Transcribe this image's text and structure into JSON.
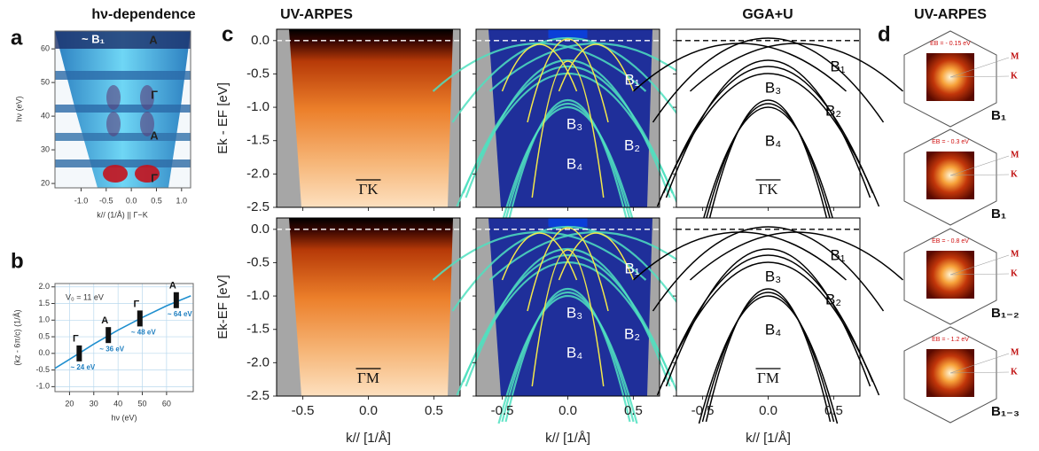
{
  "panels": {
    "a": {
      "letter": "a",
      "title": "hν-dependence",
      "ylabel": "hν (eV)",
      "xlabel": "k// (1/Å) || Γ−K",
      "xlim": [
        -1.52,
        1.18
      ],
      "ylim": [
        18.7,
        65.3
      ],
      "xticks": [
        {
          "value": -1,
          "label": "-1.0"
        },
        -0.5,
        {
          "value": 0,
          "label": "0.0"
        },
        0.5,
        {
          "value": 1,
          "label": "1.0"
        }
      ],
      "yticks": [
        20,
        30,
        40,
        50,
        60
      ],
      "annotations": [
        "~ B₁",
        "A",
        "Γ",
        "A",
        "Γ"
      ]
    },
    "b": {
      "letter": "b",
      "ylabel": "(kz - 6π/c) (1/Å)",
      "xlabel": "hν (eV)",
      "v0_label": "V₀ = 11 eV",
      "xlim": [
        14,
        71
      ],
      "ylim": [
        -1.15,
        2.1
      ],
      "grid": true,
      "xticks": [
        20,
        30,
        40,
        50,
        60
      ],
      "yticks": [
        {
          "value": -1,
          "label": "-1.0"
        },
        -0.5,
        {
          "value": 0,
          "label": "0.0"
        },
        0.5,
        {
          "value": 1,
          "label": "1.0"
        },
        1.5,
        {
          "value": 2,
          "label": "2.0"
        }
      ],
      "curve": {
        "x": [
          14,
          20,
          30,
          40,
          50,
          60,
          70
        ],
        "y": [
          -0.45,
          -0.18,
          0.28,
          0.7,
          1.08,
          1.43,
          1.73
        ]
      },
      "points": {
        "x": [
          24,
          36,
          49,
          64
        ],
        "y": [
          0,
          0.55,
          1.05,
          1.6
        ],
        "labels": [
          "Γ",
          "A",
          "Γ",
          "A"
        ],
        "energies": [
          "~ 24 eV",
          "~ 36 eV",
          "~ 48 eV",
          "~ 64 eV"
        ]
      }
    },
    "c": {
      "letter": "c",
      "titles": [
        "UV-ARPES",
        "GGA+U"
      ],
      "xlabel": "k// [1/Å]",
      "xlim": [
        -0.7,
        0.7
      ],
      "ylim": [
        -2.5,
        0.17
      ],
      "xticks": [
        -0.5,
        {
          "value": 0,
          "label": "0.0"
        },
        0.5
      ],
      "yticks": [
        {
          "value": 0,
          "label": "0.0"
        },
        -0.5,
        {
          "value": -1,
          "label": "-1.0"
        },
        -1.5,
        {
          "value": -2,
          "label": "-2.0"
        },
        -2.5
      ],
      "rows": [
        {
          "direction": "ΓK",
          "ylabel": "Ek - EF [eV]",
          "arpes_bands": [
            "B₁",
            "B₃",
            "B₂",
            "B₄"
          ],
          "calc_bands": [
            "B₁",
            "B₃",
            "B₂",
            "B₄"
          ]
        },
        {
          "direction": "ΓM",
          "ylabel": "Ek-EF [eV]",
          "arpes_bands": [
            "B₁",
            "B₃",
            "B₂",
            "B₄"
          ],
          "calc_bands": [
            "B₁",
            "B₃",
            "B₂",
            "B₄"
          ]
        }
      ]
    },
    "d": {
      "letter": "d",
      "title": "UV-ARPES",
      "M": "M",
      "K": "K",
      "maps": [
        {
          "energy": "EB = - 0.15 eV",
          "band": "B₁"
        },
        {
          "energy": "EB = - 0.3 eV",
          "band": "B₁"
        },
        {
          "energy": "EB = - 0.8 eV",
          "band": "B₁₋₂"
        },
        {
          "energy": "EB = - 1.2 eV",
          "band": "B₁₋₃"
        }
      ]
    }
  }
}
